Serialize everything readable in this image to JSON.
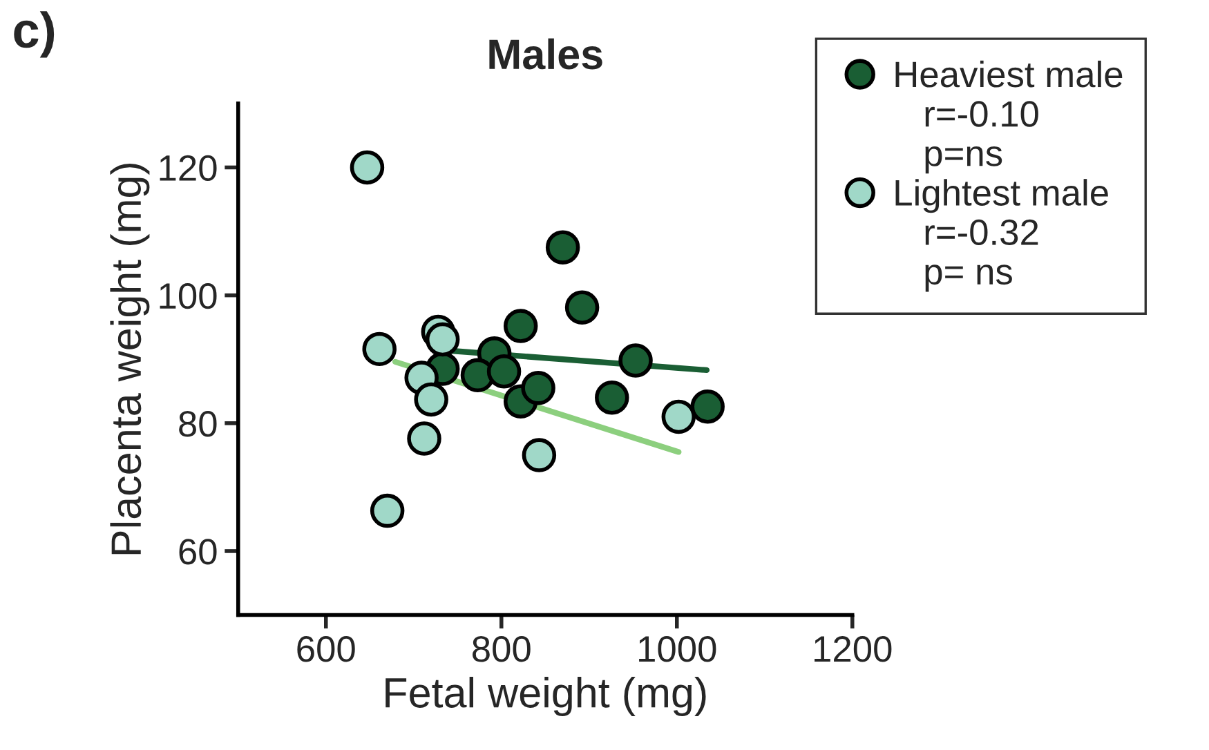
{
  "chart_data": {
    "type": "scatter",
    "title": "Males",
    "xlabel": "Fetal weight (mg)",
    "ylabel": "Placenta weight (mg)",
    "xlim": [
      500,
      1200
    ],
    "xticks": [
      600,
      800,
      1000,
      1200
    ],
    "ylim": [
      50,
      130
    ],
    "yticks": [
      60,
      80,
      100,
      120
    ],
    "grid": false,
    "legend": "right",
    "annotations": [
      "r=-0.10",
      "p=ns",
      "r=-0.32",
      "p= ns",
      "c)"
    ],
    "series": [
      {
        "name": "Heaviest male",
        "color": "#1a5e34",
        "marker": "circle",
        "x": [
          870,
          892,
          822,
          792,
          733,
          773,
          803,
          822,
          842,
          926,
          953,
          1035
        ],
        "values": [
          107.5,
          98.1,
          95.2,
          90.9,
          88.5,
          87.5,
          88.1,
          83.4,
          85.5,
          84.0,
          89.8,
          82.6
        ]
      },
      {
        "name": "Lightest male",
        "color": "#a0d8c8",
        "marker": "circle",
        "x": [
          647,
          661,
          728,
          733,
          709,
          720,
          712,
          670,
          843,
          1002
        ],
        "values": [
          120,
          91.6,
          94.3,
          93.1,
          87.1,
          83.7,
          77.6,
          66.3,
          75.0,
          81.0
        ]
      },
      {
        "type": "line",
        "color": "#1a5e34",
        "x": [
          735,
          1034
        ],
        "values": [
          91.4,
          88.3
        ]
      },
      {
        "type": "line",
        "color": "#8ccf7e",
        "x": [
          679,
          1002
        ],
        "values": [
          89.6,
          75.5
        ]
      }
    ]
  }
}
